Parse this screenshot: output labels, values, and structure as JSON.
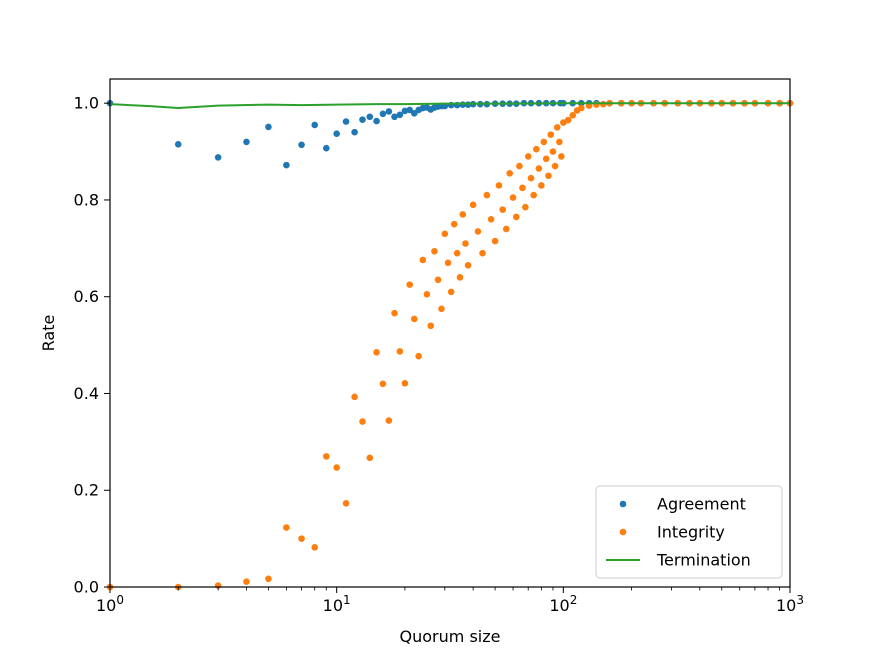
{
  "chart_data": {
    "type": "scatter",
    "title": "",
    "xlabel": "Quorum size",
    "ylabel": "Rate",
    "x_scale": "log",
    "xlim": [
      1,
      1000
    ],
    "ylim": [
      0,
      1.05
    ],
    "x_ticks": [
      {
        "value": 1,
        "base": "10",
        "exp": "0"
      },
      {
        "value": 10,
        "base": "10",
        "exp": "1"
      },
      {
        "value": 100,
        "base": "10",
        "exp": "2"
      },
      {
        "value": 1000,
        "base": "10",
        "exp": "3"
      }
    ],
    "y_ticks": [
      {
        "value": 0.0,
        "label": "0.0"
      },
      {
        "value": 0.2,
        "label": "0.2"
      },
      {
        "value": 0.4,
        "label": "0.4"
      },
      {
        "value": 0.6,
        "label": "0.6"
      },
      {
        "value": 0.8,
        "label": "0.8"
      },
      {
        "value": 1.0,
        "label": "1.0"
      }
    ],
    "grid": false,
    "legend_position": "lower-right",
    "series": [
      {
        "name": "Agreement",
        "kind": "scatter",
        "color": "#1f77b4",
        "x": [
          1,
          2,
          3,
          4,
          5,
          6,
          7,
          8,
          9,
          10,
          11,
          12,
          13,
          14,
          15,
          16,
          17,
          18,
          19,
          20,
          21,
          22,
          23,
          24,
          25,
          26,
          27,
          28,
          29,
          30,
          32,
          34,
          36,
          38,
          40,
          43,
          46,
          50,
          54,
          58,
          62,
          67,
          72,
          78,
          84,
          90,
          97,
          100,
          110,
          120,
          130,
          140,
          160,
          180,
          200,
          220,
          250,
          280,
          320,
          360,
          400,
          450,
          500,
          560,
          630,
          700,
          800,
          900,
          1000
        ],
        "y": [
          1.0,
          0.915,
          0.888,
          0.92,
          0.951,
          0.872,
          0.914,
          0.955,
          0.907,
          0.937,
          0.962,
          0.94,
          0.966,
          0.972,
          0.963,
          0.978,
          0.983,
          0.972,
          0.976,
          0.984,
          0.986,
          0.979,
          0.986,
          0.99,
          0.991,
          0.987,
          0.991,
          0.993,
          0.994,
          0.994,
          0.996,
          0.996,
          0.997,
          0.997,
          0.998,
          0.998,
          0.998,
          0.999,
          0.999,
          0.999,
          0.999,
          1.0,
          1.0,
          1.0,
          1.0,
          1.0,
          1.0,
          1.0,
          1.0,
          1.0,
          1.0,
          1.0,
          1.0,
          1.0,
          1.0,
          1.0,
          1.0,
          1.0,
          1.0,
          1.0,
          1.0,
          1.0,
          1.0,
          1.0,
          1.0,
          1.0,
          1.0,
          1.0,
          1.0
        ]
      },
      {
        "name": "Integrity",
        "kind": "scatter",
        "color": "#ff7f0e",
        "x": [
          1,
          2,
          3,
          4,
          5,
          6,
          7,
          8,
          9,
          10,
          11,
          12,
          13,
          14,
          15,
          16,
          17,
          18,
          19,
          20,
          21,
          22,
          23,
          24,
          25,
          26,
          27,
          28,
          29,
          30,
          31,
          32,
          33,
          34,
          35,
          36,
          37,
          38,
          40,
          42,
          44,
          46,
          48,
          50,
          52,
          54,
          56,
          58,
          60,
          62,
          64,
          66,
          68,
          70,
          72,
          74,
          76,
          78,
          80,
          82,
          84,
          86,
          88,
          90,
          92,
          94,
          96,
          98,
          100,
          105,
          110,
          115,
          120,
          130,
          140,
          150,
          160,
          180,
          200,
          220,
          250,
          280,
          320,
          360,
          400,
          450,
          500,
          560,
          630,
          700,
          800,
          900,
          1000
        ],
        "y": [
          0.0,
          0.0,
          0.003,
          0.011,
          0.017,
          0.123,
          0.1,
          0.082,
          0.27,
          0.247,
          0.173,
          0.393,
          0.342,
          0.267,
          0.485,
          0.42,
          0.344,
          0.566,
          0.487,
          0.421,
          0.625,
          0.554,
          0.477,
          0.676,
          0.605,
          0.54,
          0.694,
          0.635,
          0.575,
          0.73,
          0.67,
          0.61,
          0.75,
          0.69,
          0.64,
          0.77,
          0.71,
          0.665,
          0.79,
          0.735,
          0.69,
          0.81,
          0.76,
          0.715,
          0.83,
          0.78,
          0.74,
          0.855,
          0.805,
          0.765,
          0.87,
          0.825,
          0.785,
          0.89,
          0.845,
          0.81,
          0.905,
          0.865,
          0.83,
          0.92,
          0.885,
          0.85,
          0.935,
          0.9,
          0.87,
          0.95,
          0.92,
          0.89,
          0.96,
          0.965,
          0.975,
          0.985,
          0.99,
          0.995,
          0.997,
          0.998,
          1.0,
          1.0,
          1.0,
          1.0,
          1.0,
          1.0,
          1.0,
          1.0,
          1.0,
          1.0,
          1.0,
          1.0,
          1.0,
          1.0,
          1.0,
          1.0,
          1.0
        ]
      },
      {
        "name": "Termination",
        "kind": "line",
        "color": "#2ca02c",
        "x": [
          1,
          1.5,
          2,
          3,
          5,
          7,
          10,
          15,
          20,
          30,
          50,
          100,
          200,
          500,
          1000
        ],
        "y": [
          0.998,
          0.994,
          0.99,
          0.995,
          0.997,
          0.996,
          0.997,
          0.998,
          0.998,
          0.999,
          0.999,
          1.0,
          1.0,
          1.0,
          1.0
        ]
      }
    ]
  }
}
